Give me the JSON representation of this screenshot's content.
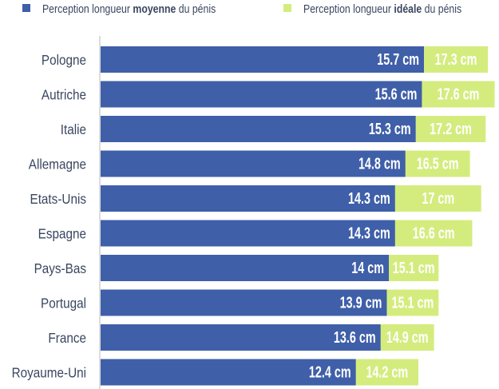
{
  "chart_data": {
    "type": "bar",
    "orientation": "horizontal",
    "categories": [
      "Pologne",
      "Autriche",
      "Italie",
      "Allemagne",
      "Etats-Unis",
      "Espagne",
      "Pays-Bas",
      "Portugal",
      "France",
      "Royaume-Uni"
    ],
    "series": [
      {
        "name_parts": [
          "Perception longueur ",
          "moyenne",
          " du pénis"
        ],
        "name": "Perception longueur moyenne du pénis",
        "color": "#3f5fa8",
        "values": [
          15.7,
          15.6,
          15.3,
          14.8,
          14.3,
          14.3,
          14,
          13.9,
          13.6,
          12.4
        ],
        "labels": [
          "15.7 cm",
          "15.6 cm",
          "15.3 cm",
          "14.8 cm",
          "14.3 cm",
          "14.3 cm",
          "14 cm",
          "13.9 cm",
          "13.6 cm",
          "12.4 cm"
        ]
      },
      {
        "name_parts": [
          "Perception longueur ",
          "idéale",
          " du pénis"
        ],
        "name": "Perception longueur idéale du pénis",
        "color": "#d4ec7e",
        "values": [
          17.3,
          17.6,
          17.2,
          16.5,
          17,
          16.6,
          15.1,
          15.1,
          14.9,
          14.2
        ],
        "labels": [
          "17.3 cm",
          "17.6 cm",
          "17.2 cm",
          "16.5 cm",
          "17 cm",
          "16.6 cm",
          "15.1 cm",
          "15.1 cm",
          "14.9 cm",
          "14.2 cm"
        ]
      }
    ],
    "unit": "cm",
    "legend": "top",
    "grid": false
  }
}
